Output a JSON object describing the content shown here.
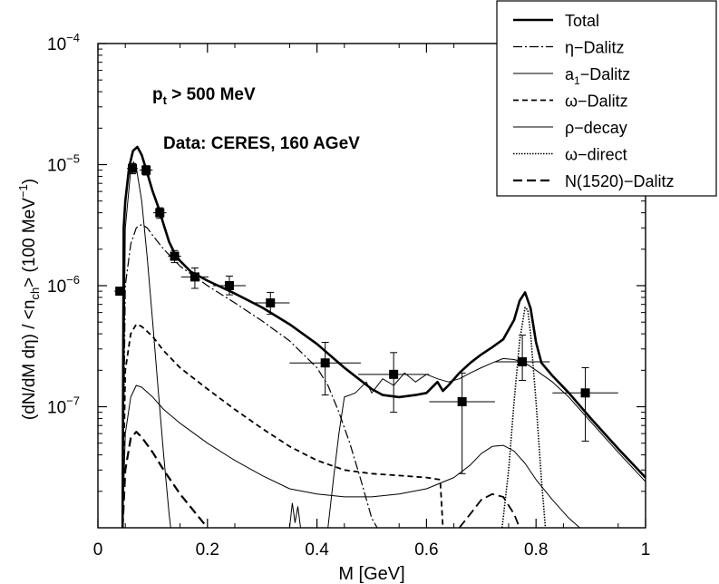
{
  "chart_data": {
    "type": "line",
    "xlabel": "M [GeV]",
    "ylabel": "(dN/dM dη) / <n",
    "ylabel_sub": "ch",
    "ylabel_tail": "> (100 MeV",
    "ylabel_exp": "−1",
    "ylabel_end": ")",
    "xlim": [
      0,
      1
    ],
    "ylim": [
      1e-08,
      0.0001
    ],
    "yscale": "log",
    "grid": false,
    "legend_position": "top-right",
    "x_ticks": [
      {
        "value": 0,
        "label": "0"
      },
      {
        "value": 0.2,
        "label": "0.2"
      },
      {
        "value": 0.4,
        "label": "0.4"
      },
      {
        "value": 0.6,
        "label": "0.6"
      },
      {
        "value": 0.8,
        "label": "0.8"
      },
      {
        "value": 1,
        "label": "1"
      }
    ],
    "y_ticks": [
      {
        "value": 1e-07,
        "base": "10",
        "exp": "−7"
      },
      {
        "value": 1e-06,
        "base": "10",
        "exp": "−6"
      },
      {
        "value": 1e-05,
        "base": "10",
        "exp": "−5"
      },
      {
        "value": 0.0001,
        "base": "10",
        "exp": "−4"
      }
    ],
    "annotations": {
      "cut": {
        "main": "p",
        "sub": "t",
        "rest": " > 500 MeV"
      },
      "data_source": "Data: CERES, 160 AGeV"
    },
    "series": [
      {
        "name": "Total",
        "subscript": "",
        "suffix": "",
        "color": "#000000",
        "width": 2.6,
        "dash": "",
        "points": [
          [
            0.045,
            1e-08
          ],
          [
            0.047,
            3e-06
          ],
          [
            0.05,
            5e-06
          ],
          [
            0.057,
            9.5e-06
          ],
          [
            0.064,
            1.3e-05
          ],
          [
            0.072,
            1.4e-05
          ],
          [
            0.08,
            1.2e-05
          ],
          [
            0.09,
            8.5e-06
          ],
          [
            0.1,
            6e-06
          ],
          [
            0.11,
            4.5e-06
          ],
          [
            0.12,
            3.2e-06
          ],
          [
            0.13,
            2.3e-06
          ],
          [
            0.14,
            1.85e-06
          ],
          [
            0.15,
            1.6e-06
          ],
          [
            0.17,
            1.3e-06
          ],
          [
            0.2,
            1.1e-06
          ],
          [
            0.25,
            8.6e-07
          ],
          [
            0.3,
            6.6e-07
          ],
          [
            0.35,
            4.8e-07
          ],
          [
            0.4,
            3.3e-07
          ],
          [
            0.45,
            2.1e-07
          ],
          [
            0.5,
            1.4e-07
          ],
          [
            0.52,
            1.25e-07
          ],
          [
            0.55,
            1.2e-07
          ],
          [
            0.58,
            1.25e-07
          ],
          [
            0.6,
            1.3e-07
          ],
          [
            0.62,
            1.6e-07
          ],
          [
            0.63,
            1.35e-07
          ],
          [
            0.64,
            1.5e-07
          ],
          [
            0.66,
            1.9e-07
          ],
          [
            0.68,
            2.3e-07
          ],
          [
            0.7,
            2.7e-07
          ],
          [
            0.72,
            3.1e-07
          ],
          [
            0.74,
            3.6e-07
          ],
          [
            0.76,
            5.2e-07
          ],
          [
            0.77,
            7.5e-07
          ],
          [
            0.78,
            8.8e-07
          ],
          [
            0.79,
            6.5e-07
          ],
          [
            0.8,
            3.4e-07
          ],
          [
            0.81,
            2.3e-07
          ],
          [
            0.83,
            1.8e-07
          ],
          [
            0.86,
            1.3e-07
          ],
          [
            0.9,
            8e-08
          ],
          [
            0.95,
            4.5e-08
          ],
          [
            1.0,
            2.6e-08
          ]
        ]
      },
      {
        "name": "η−Dalitz",
        "subscript": "",
        "suffix": "",
        "color": "#000000",
        "width": 1.2,
        "dash": "10,3,2,3",
        "points": [
          [
            0.045,
            1e-08
          ],
          [
            0.05,
            1e-06
          ],
          [
            0.06,
            2.2e-06
          ],
          [
            0.07,
            3e-06
          ],
          [
            0.08,
            3.2e-06
          ],
          [
            0.09,
            3e-06
          ],
          [
            0.1,
            2.6e-06
          ],
          [
            0.12,
            2e-06
          ],
          [
            0.15,
            1.45e-06
          ],
          [
            0.2,
            1e-06
          ],
          [
            0.25,
            7.2e-07
          ],
          [
            0.3,
            5.1e-07
          ],
          [
            0.35,
            3.5e-07
          ],
          [
            0.4,
            2.1e-07
          ],
          [
            0.42,
            1.5e-07
          ],
          [
            0.44,
            9e-08
          ],
          [
            0.46,
            5e-08
          ],
          [
            0.48,
            2.5e-08
          ],
          [
            0.5,
            1.2e-08
          ],
          [
            0.51,
            1e-08
          ]
        ]
      },
      {
        "name": "a",
        "subscript": "1",
        "suffix": "−Dalitz",
        "color": "#000000",
        "width": 1.0,
        "dash": "",
        "points": [
          [
            0.42,
            1e-08
          ],
          [
            0.43,
            2.5e-08
          ],
          [
            0.44,
            6e-08
          ],
          [
            0.45,
            1.2e-07
          ],
          [
            0.47,
            1.3e-07
          ],
          [
            0.49,
            1.6e-07
          ],
          [
            0.5,
            1.3e-07
          ],
          [
            0.52,
            1.7e-07
          ],
          [
            0.54,
            1.5e-07
          ],
          [
            0.56,
            1.9e-07
          ],
          [
            0.58,
            1.6e-07
          ],
          [
            0.6,
            1.85e-07
          ],
          [
            0.62,
            1.7e-07
          ],
          [
            0.64,
            1.6e-07
          ],
          [
            0.66,
            1.7e-07
          ],
          [
            0.68,
            1.9e-07
          ],
          [
            0.7,
            2.1e-07
          ],
          [
            0.72,
            2.3e-07
          ],
          [
            0.74,
            2.5e-07
          ],
          [
            0.76,
            2.45e-07
          ],
          [
            0.78,
            2.3e-07
          ],
          [
            0.8,
            2e-07
          ],
          [
            0.83,
            1.6e-07
          ],
          [
            0.86,
            1.2e-07
          ],
          [
            0.9,
            7.5e-08
          ],
          [
            0.95,
            4.2e-08
          ],
          [
            1.0,
            2.4e-08
          ]
        ]
      },
      {
        "name": "ω−Dalitz",
        "subscript": "",
        "suffix": "",
        "color": "#000000",
        "width": 1.8,
        "dash": "6,4",
        "points": [
          [
            0.045,
            1e-08
          ],
          [
            0.05,
            2e-07
          ],
          [
            0.06,
            4e-07
          ],
          [
            0.07,
            4.8e-07
          ],
          [
            0.08,
            4.6e-07
          ],
          [
            0.1,
            3.8e-07
          ],
          [
            0.12,
            2.9e-07
          ],
          [
            0.15,
            2.1e-07
          ],
          [
            0.2,
            1.4e-07
          ],
          [
            0.25,
            9.5e-08
          ],
          [
            0.3,
            6.6e-08
          ],
          [
            0.35,
            4.7e-08
          ],
          [
            0.4,
            3.6e-08
          ],
          [
            0.45,
            3e-08
          ],
          [
            0.5,
            2.8e-08
          ],
          [
            0.55,
            2.7e-08
          ],
          [
            0.6,
            2.6e-08
          ],
          [
            0.625,
            2.5e-08
          ],
          [
            0.63,
            1e-08
          ]
        ]
      },
      {
        "name": "ρ−decay",
        "subscript": "",
        "suffix": "",
        "color": "#000000",
        "width": 1.0,
        "dash": "",
        "points": [
          [
            0.045,
            1e-08
          ],
          [
            0.05,
            6e-08
          ],
          [
            0.06,
            1.2e-07
          ],
          [
            0.07,
            1.5e-07
          ],
          [
            0.08,
            1.45e-07
          ],
          [
            0.1,
            1.2e-07
          ],
          [
            0.12,
            9.5e-08
          ],
          [
            0.15,
            7.3e-08
          ],
          [
            0.2,
            5e-08
          ],
          [
            0.25,
            3.6e-08
          ],
          [
            0.3,
            2.7e-08
          ],
          [
            0.35,
            2.1e-08
          ],
          [
            0.4,
            1.9e-08
          ],
          [
            0.45,
            1.8e-08
          ],
          [
            0.5,
            1.8e-08
          ],
          [
            0.55,
            1.9e-08
          ],
          [
            0.6,
            2.1e-08
          ],
          [
            0.65,
            2.6e-08
          ],
          [
            0.68,
            3.3e-08
          ],
          [
            0.7,
            4.1e-08
          ],
          [
            0.72,
            4.7e-08
          ],
          [
            0.74,
            4.8e-08
          ],
          [
            0.76,
            4.3e-08
          ],
          [
            0.78,
            3.4e-08
          ],
          [
            0.8,
            2.5e-08
          ],
          [
            0.83,
            1.7e-08
          ],
          [
            0.86,
            1.2e-08
          ],
          [
            0.88,
            1e-08
          ]
        ]
      },
      {
        "name": "ω−direct",
        "subscript": "",
        "suffix": "",
        "color": "#000000",
        "width": 1.6,
        "dash": "1.5,1.5",
        "points": [
          [
            0.738,
            1e-08
          ],
          [
            0.75,
            3e-08
          ],
          [
            0.76,
            1.1e-07
          ],
          [
            0.77,
            3.5e-07
          ],
          [
            0.78,
            6.6e-07
          ],
          [
            0.785,
            6.3e-07
          ],
          [
            0.79,
            4e-07
          ],
          [
            0.8,
            1.1e-07
          ],
          [
            0.81,
            2.5e-08
          ],
          [
            0.817,
            1e-08
          ]
        ]
      },
      {
        "name": "N(1520)−Dalitz",
        "subscript": "",
        "suffix": "",
        "color": "#000000",
        "width": 2.2,
        "dash": "10,5",
        "points": [
          [
            0.045,
            1e-08
          ],
          [
            0.05,
            3e-08
          ],
          [
            0.06,
            5.5e-08
          ],
          [
            0.07,
            6.2e-08
          ],
          [
            0.08,
            5.6e-08
          ],
          [
            0.1,
            4.2e-08
          ],
          [
            0.12,
            3e-08
          ],
          [
            0.15,
            1.9e-08
          ],
          [
            0.2,
            1e-08
          ]
        ]
      }
    ],
    "extra_segments": [
      {
        "points": [
          [
            0.045,
            1e-08
          ],
          [
            0.05,
            3e-06
          ],
          [
            0.06,
            9e-06
          ],
          [
            0.065,
            1.05e-05
          ],
          [
            0.07,
            9.5e-06
          ],
          [
            0.08,
            5e-06
          ],
          [
            0.09,
            1.7e-06
          ],
          [
            0.1,
            5e-07
          ],
          [
            0.11,
            1.4e-07
          ],
          [
            0.12,
            4e-08
          ],
          [
            0.13,
            1.3e-08
          ],
          [
            0.133,
            1e-08
          ]
        ],
        "width": 1.0,
        "dash": ""
      },
      {
        "points": [
          [
            0.35,
            1e-08
          ],
          [
            0.355,
            1.6e-08
          ],
          [
            0.36,
            1.1e-08
          ],
          [
            0.365,
            1.5e-08
          ],
          [
            0.37,
            1e-08
          ]
        ],
        "width": 1.0,
        "dash": ""
      },
      {
        "points": [
          [
            0.66,
            1e-08
          ],
          [
            0.68,
            1.3e-08
          ],
          [
            0.7,
            1.7e-08
          ],
          [
            0.72,
            1.9e-08
          ],
          [
            0.74,
            1.8e-08
          ],
          [
            0.76,
            1.3e-08
          ],
          [
            0.77,
            1e-08
          ]
        ],
        "width": 1.8,
        "dash": "10,5"
      }
    ],
    "data_points": [
      {
        "x": 0.04,
        "y": 9e-07,
        "xerr": 0.01,
        "ylo": 8.6e-07,
        "yhi": 9.4e-07
      },
      {
        "x": 0.063,
        "y": 9.3e-06,
        "xerr": 0.01,
        "ylo": 8.4e-06,
        "yhi": 1.02e-05
      },
      {
        "x": 0.088,
        "y": 9e-06,
        "xerr": 0.012,
        "ylo": 8.2e-06,
        "yhi": 9.8e-06
      },
      {
        "x": 0.113,
        "y": 4e-06,
        "xerr": 0.012,
        "ylo": 3.6e-06,
        "yhi": 4.4e-06
      },
      {
        "x": 0.14,
        "y": 1.75e-06,
        "xerr": 0.012,
        "ylo": 1.55e-06,
        "yhi": 1.95e-06
      },
      {
        "x": 0.177,
        "y": 1.18e-06,
        "xerr": 0.025,
        "ylo": 9.5e-07,
        "yhi": 1.4e-06
      },
      {
        "x": 0.24,
        "y": 1e-06,
        "xerr": 0.03,
        "ylo": 8.4e-07,
        "yhi": 1.2e-06
      },
      {
        "x": 0.315,
        "y": 7.2e-07,
        "xerr": 0.035,
        "ylo": 5.8e-07,
        "yhi": 8.8e-07
      },
      {
        "x": 0.415,
        "y": 2.3e-07,
        "xerr": 0.065,
        "ylo": 1.25e-07,
        "yhi": 3.4e-07
      },
      {
        "x": 0.54,
        "y": 1.85e-07,
        "xerr": 0.065,
        "ylo": 9e-08,
        "yhi": 2.8e-07
      },
      {
        "x": 0.665,
        "y": 1.1e-07,
        "xerr": 0.06,
        "ylo": 2.8e-08,
        "yhi": 1.9e-07
      },
      {
        "x": 0.775,
        "y": 2.35e-07,
        "xerr": 0.05,
        "ylo": 1.65e-07,
        "yhi": 3.9e-07
      },
      {
        "x": 0.89,
        "y": 1.3e-07,
        "xerr": 0.06,
        "ylo": 5.2e-08,
        "yhi": 2.1e-07
      }
    ]
  }
}
